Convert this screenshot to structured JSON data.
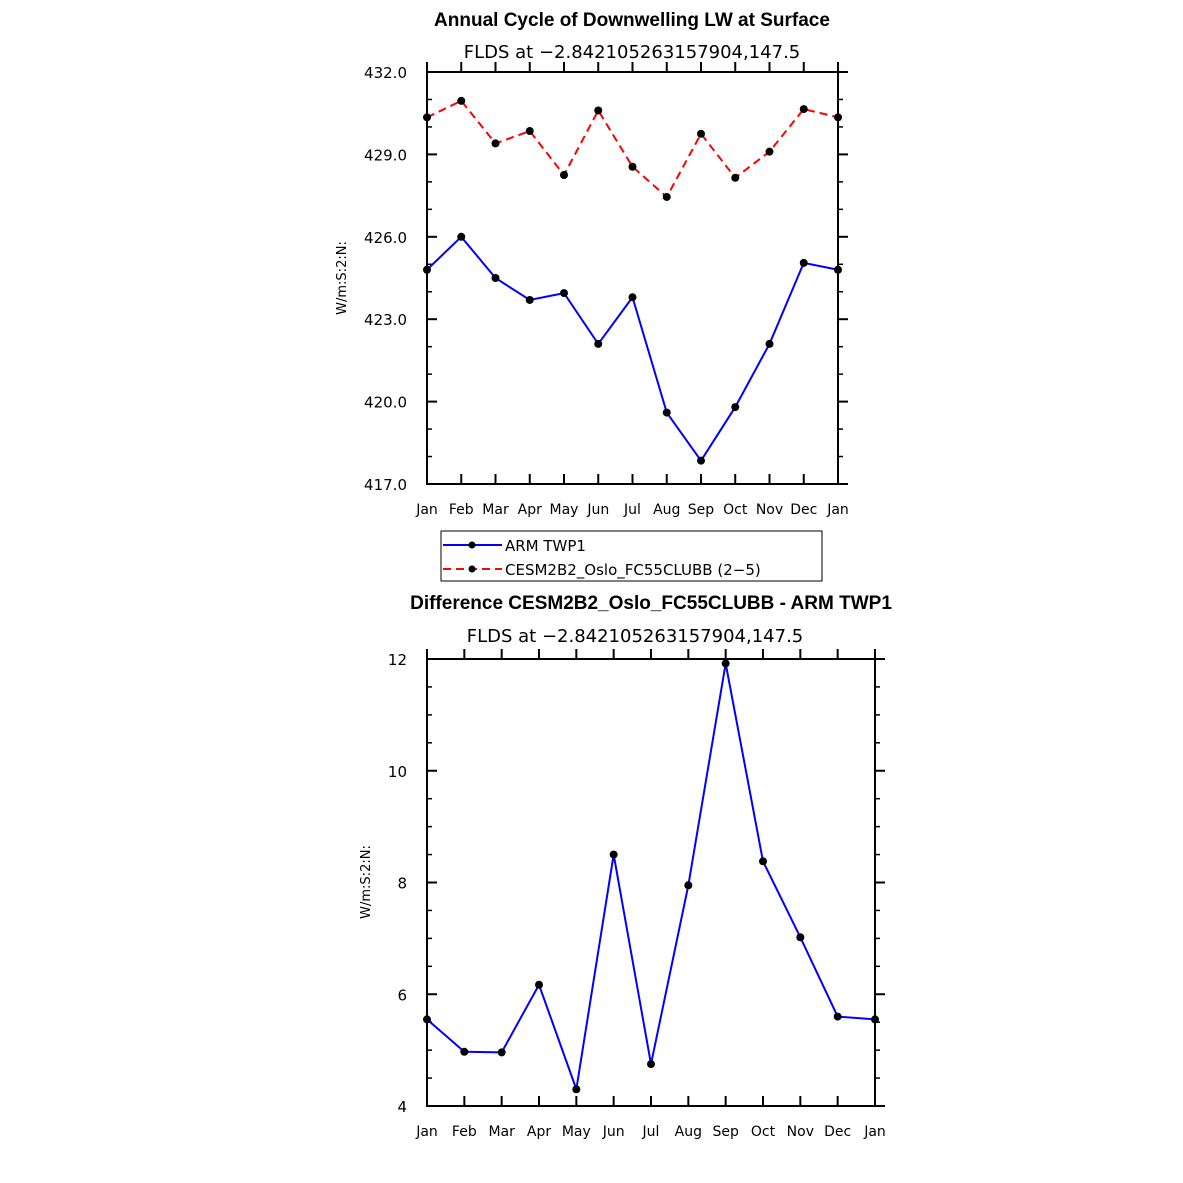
{
  "chart_data": [
    {
      "type": "line",
      "title": "Annual Cycle of Downwelling LW at Surface",
      "subtitle": "FLDS at −2.842105263157904,147.5",
      "ylabel": "W/m:S:2:N:",
      "ylim": [
        417.0,
        432.0
      ],
      "yticks": [
        "417.0",
        "420.0",
        "423.0",
        "426.0",
        "429.0",
        "432.0"
      ],
      "categories": [
        "Jan",
        "Feb",
        "Mar",
        "Apr",
        "May",
        "Jun",
        "Jul",
        "Aug",
        "Sep",
        "Oct",
        "Nov",
        "Dec",
        "Jan"
      ],
      "series": [
        {
          "name": "ARM TWP1",
          "color": "#0000ff",
          "dash": "solid",
          "values": [
            424.8,
            426.0,
            424.5,
            423.7,
            423.95,
            422.1,
            423.8,
            419.6,
            417.85,
            419.8,
            422.1,
            425.05,
            424.8
          ]
        },
        {
          "name": "CESM2B2_Oslo_FC55CLUBB (2−5)",
          "color": "#ff0000",
          "dash": "dashed",
          "values": [
            430.35,
            430.95,
            429.4,
            429.85,
            428.25,
            430.6,
            428.55,
            427.45,
            429.75,
            428.15,
            429.1,
            430.65,
            430.35
          ]
        }
      ],
      "legend": "below"
    },
    {
      "type": "line",
      "title": "Difference CESM2B2_Oslo_FC55CLUBB - ARM TWP1",
      "subtitle": "FLDS at −2.842105263157904,147.5",
      "ylabel": "W/m:S:2:N:",
      "ylim": [
        4,
        12
      ],
      "yticks": [
        "4",
        "6",
        "8",
        "10",
        "12"
      ],
      "categories": [
        "Jan",
        "Feb",
        "Mar",
        "Apr",
        "May",
        "Jun",
        "Jul",
        "Aug",
        "Sep",
        "Oct",
        "Nov",
        "Dec",
        "Jan"
      ],
      "series": [
        {
          "color": "#0000ff",
          "dash": "solid",
          "values": [
            5.55,
            4.97,
            4.96,
            6.17,
            4.3,
            8.5,
            4.75,
            7.95,
            11.92,
            8.38,
            7.02,
            5.6,
            5.55
          ]
        }
      ]
    }
  ]
}
